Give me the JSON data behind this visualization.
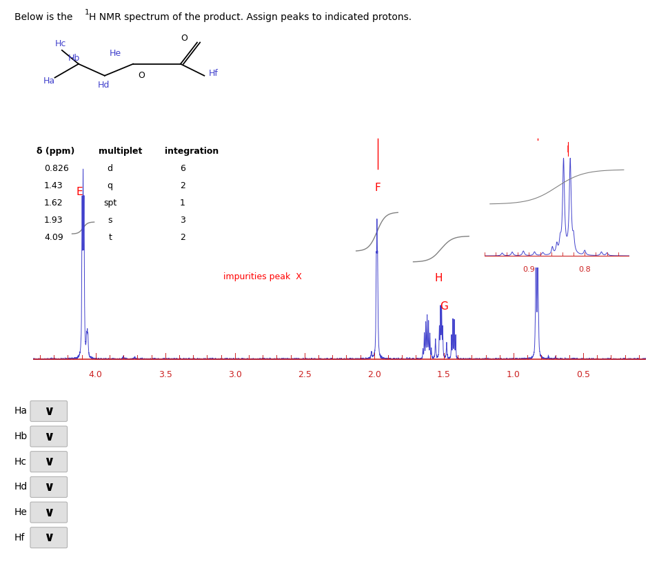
{
  "blue_color": "#4040CC",
  "red_color": "#CC2020",
  "gray_color": "#888888",
  "background": "#ffffff",
  "xmin": 0.05,
  "xmax": 4.45,
  "table_headers": [
    "δ (ppm)",
    "multiplet",
    "integration"
  ],
  "table_rows": [
    [
      "0.826",
      "d",
      "6"
    ],
    [
      "1.43",
      "q",
      "2"
    ],
    [
      "1.62",
      "spt",
      "1"
    ],
    [
      "1.93",
      "s",
      "3"
    ],
    [
      "4.09",
      "t",
      "2"
    ]
  ],
  "dropdown_labels": [
    "Ha",
    "Hb",
    "Hc",
    "Hd",
    "He",
    "Hf"
  ],
  "axis_labels": [
    4.0,
    3.5,
    3.0,
    2.5,
    2.0,
    1.5,
    1.0,
    0.5
  ]
}
